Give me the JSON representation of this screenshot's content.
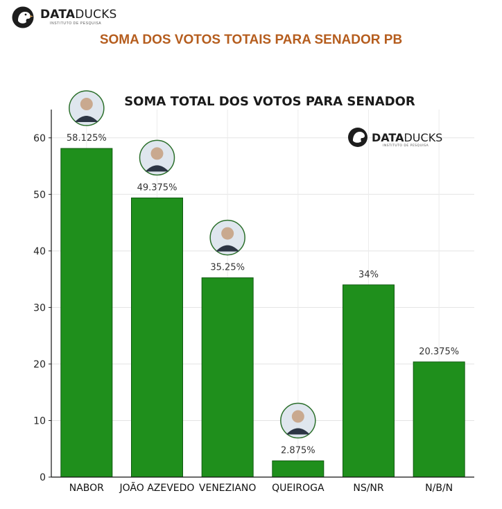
{
  "header": {
    "brand_bold": "DATA",
    "brand_light": "DUCKS",
    "brand_sub": "INSTITUTO DE PESQUISA",
    "page_title": "SOMA DOS VOTOS TOTAIS PARA SENADOR PB"
  },
  "chart_data": {
    "type": "bar",
    "title": "SOMA TOTAL DOS VOTOS PARA SENADOR",
    "categories": [
      "NABOR",
      "JOÃO AZEVEDO",
      "VENEZIANO",
      "QUEIROGA",
      "NS/NR",
      "N/B/N"
    ],
    "values": [
      58.125,
      49.375,
      35.25,
      2.875,
      34,
      20.375
    ],
    "labels": [
      "58.125%",
      "49.375%",
      "35.25%",
      "2.875%",
      "34%",
      "20.375%"
    ],
    "xlabel": "",
    "ylabel": "",
    "ylim": [
      0,
      65
    ],
    "yticks": [
      0,
      10,
      20,
      30,
      40,
      50,
      60
    ],
    "grid": true,
    "bar_color": "#1f8f1c",
    "bar_edge_color": "#0f5a10",
    "candidate_photos": [
      true,
      true,
      true,
      true,
      false,
      false
    ],
    "watermark": {
      "bold": "DATA",
      "light": "DUCKS",
      "sub": "INSTITUTO DE PESQUISA"
    }
  }
}
